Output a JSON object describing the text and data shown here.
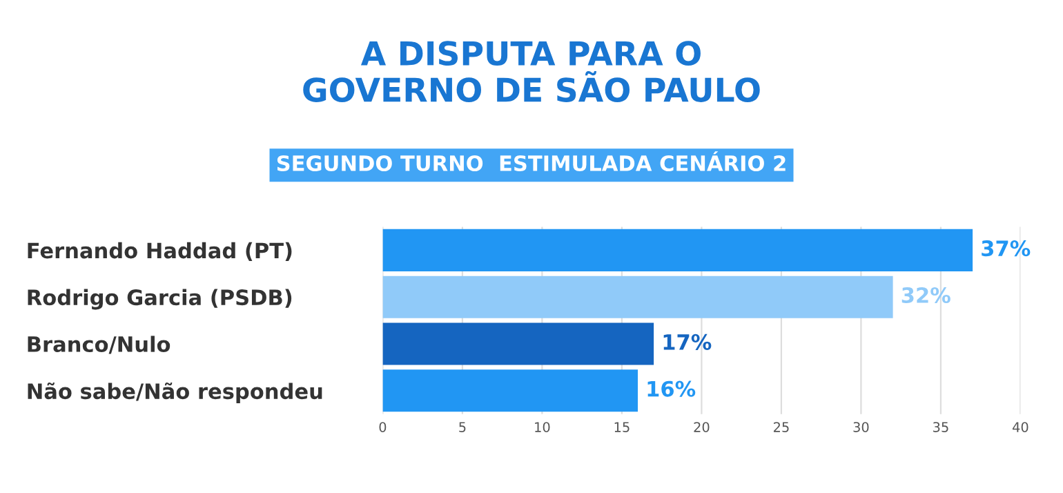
{
  "chart_data": {
    "type": "bar",
    "orientation": "horizontal",
    "title": "A DISPUTA PARA O\nGOVERNO DE SÃO PAULO",
    "subtitle": "SEGUNDO TURNO  ESTIMULADA CENÁRIO 2",
    "categories": [
      "Fernando Haddad (PT)",
      "Rodrigo Garcia (PSDB)",
      "Branco/Nulo",
      "Não sabe/Não respondeu"
    ],
    "values": [
      37,
      32,
      17,
      16
    ],
    "colors": [
      "#2196f3",
      "#90caf9",
      "#1565c0",
      "#2196f3"
    ],
    "value_labels": [
      "37%",
      "32%",
      "17%",
      "16%"
    ],
    "xlim": [
      0,
      40
    ],
    "xticks": [
      0,
      5,
      10,
      15,
      20,
      25,
      30,
      35,
      40
    ],
    "grid": "x",
    "legend": false
  }
}
